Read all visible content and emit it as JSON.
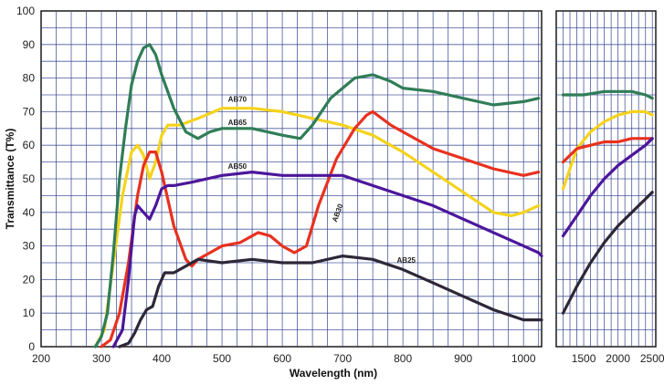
{
  "chart_data": {
    "type": "line",
    "xlabel": "Wavelength (nm)",
    "ylabel": "Transmittance (T%)",
    "ylim": [
      0,
      100
    ],
    "yticks": [
      0,
      10,
      20,
      30,
      40,
      50,
      60,
      70,
      80,
      90,
      100
    ],
    "grid": true,
    "panels": [
      {
        "xlim": [
          200,
          1030
        ],
        "xticks": [
          200,
          300,
          400,
          500,
          600,
          700,
          800,
          900,
          1000
        ],
        "minor_xtick_step": 25
      },
      {
        "xlim": [
          1100,
          2550
        ],
        "xticks": [
          1500,
          2000,
          2500
        ],
        "minor_xtick_step": 100
      }
    ],
    "series": [
      {
        "name": "AB70",
        "color": "#f5d31c",
        "values": [
          [
            290,
            0
          ],
          [
            305,
            5
          ],
          [
            320,
            25
          ],
          [
            335,
            45
          ],
          [
            350,
            58
          ],
          [
            360,
            60
          ],
          [
            370,
            57
          ],
          [
            380,
            50
          ],
          [
            390,
            55
          ],
          [
            400,
            63
          ],
          [
            410,
            66
          ],
          [
            430,
            66
          ],
          [
            460,
            68
          ],
          [
            500,
            71
          ],
          [
            550,
            71
          ],
          [
            600,
            70
          ],
          [
            650,
            68
          ],
          [
            700,
            66
          ],
          [
            750,
            63
          ],
          [
            800,
            58
          ],
          [
            850,
            52
          ],
          [
            900,
            46
          ],
          [
            950,
            40
          ],
          [
            980,
            39
          ],
          [
            1000,
            40
          ],
          [
            1025,
            42
          ]
        ],
        "values_ext": [
          [
            1200,
            47
          ],
          [
            1400,
            59
          ],
          [
            1600,
            64
          ],
          [
            1800,
            67
          ],
          [
            2000,
            69
          ],
          [
            2200,
            70
          ],
          [
            2400,
            70
          ],
          [
            2500,
            69
          ]
        ]
      },
      {
        "name": "AB65",
        "color": "#2f7d56",
        "values": [
          [
            290,
            0
          ],
          [
            300,
            3
          ],
          [
            310,
            10
          ],
          [
            320,
            28
          ],
          [
            330,
            50
          ],
          [
            340,
            65
          ],
          [
            350,
            78
          ],
          [
            360,
            85
          ],
          [
            370,
            89
          ],
          [
            380,
            90
          ],
          [
            390,
            87
          ],
          [
            400,
            81
          ],
          [
            420,
            71
          ],
          [
            440,
            64
          ],
          [
            460,
            62
          ],
          [
            480,
            64
          ],
          [
            500,
            65
          ],
          [
            550,
            65
          ],
          [
            600,
            63
          ],
          [
            630,
            62
          ],
          [
            650,
            66
          ],
          [
            680,
            74
          ],
          [
            720,
            80
          ],
          [
            750,
            81
          ],
          [
            780,
            79
          ],
          [
            800,
            77
          ],
          [
            850,
            76
          ],
          [
            900,
            74
          ],
          [
            950,
            72
          ],
          [
            1000,
            73
          ],
          [
            1025,
            74
          ]
        ],
        "values_ext": [
          [
            1200,
            75
          ],
          [
            1500,
            75
          ],
          [
            1800,
            76
          ],
          [
            2000,
            76
          ],
          [
            2200,
            76
          ],
          [
            2400,
            75
          ],
          [
            2500,
            74
          ]
        ]
      },
      {
        "name": "AB30",
        "color": "#e8311f",
        "values": [
          [
            300,
            0
          ],
          [
            315,
            2
          ],
          [
            330,
            10
          ],
          [
            345,
            25
          ],
          [
            360,
            45
          ],
          [
            370,
            54
          ],
          [
            380,
            58
          ],
          [
            390,
            58
          ],
          [
            400,
            52
          ],
          [
            420,
            36
          ],
          [
            440,
            26
          ],
          [
            450,
            24
          ],
          [
            460,
            26
          ],
          [
            480,
            28
          ],
          [
            500,
            30
          ],
          [
            530,
            31
          ],
          [
            560,
            34
          ],
          [
            580,
            33
          ],
          [
            600,
            30
          ],
          [
            620,
            28
          ],
          [
            640,
            30
          ],
          [
            660,
            42
          ],
          [
            690,
            56
          ],
          [
            720,
            65
          ],
          [
            740,
            69
          ],
          [
            750,
            70
          ],
          [
            780,
            66
          ],
          [
            800,
            64
          ],
          [
            850,
            59
          ],
          [
            900,
            56
          ],
          [
            950,
            53
          ],
          [
            1000,
            51
          ],
          [
            1025,
            52
          ]
        ],
        "values_ext": [
          [
            1200,
            55
          ],
          [
            1400,
            59
          ],
          [
            1600,
            60
          ],
          [
            1800,
            61
          ],
          [
            2000,
            61
          ],
          [
            2200,
            62
          ],
          [
            2400,
            62
          ],
          [
            2500,
            62
          ]
        ]
      },
      {
        "name": "AB50",
        "color": "#4c169b",
        "values": [
          [
            320,
            0
          ],
          [
            335,
            5
          ],
          [
            345,
            20
          ],
          [
            355,
            39
          ],
          [
            360,
            42
          ],
          [
            370,
            40
          ],
          [
            380,
            38
          ],
          [
            390,
            42
          ],
          [
            400,
            47
          ],
          [
            410,
            48
          ],
          [
            420,
            48
          ],
          [
            450,
            49
          ],
          [
            500,
            51
          ],
          [
            550,
            52
          ],
          [
            600,
            51
          ],
          [
            650,
            51
          ],
          [
            700,
            51
          ],
          [
            750,
            48
          ],
          [
            800,
            45
          ],
          [
            850,
            42
          ],
          [
            900,
            38
          ],
          [
            950,
            34
          ],
          [
            1000,
            30
          ],
          [
            1025,
            28
          ],
          [
            1030,
            27
          ]
        ],
        "values_ext": [
          [
            1200,
            33
          ],
          [
            1400,
            39
          ],
          [
            1600,
            45
          ],
          [
            1800,
            50
          ],
          [
            2000,
            54
          ],
          [
            2200,
            57
          ],
          [
            2400,
            60
          ],
          [
            2500,
            62
          ]
        ]
      },
      {
        "name": "AB25",
        "color": "#2e2738",
        "values": [
          [
            330,
            0
          ],
          [
            345,
            1
          ],
          [
            355,
            4
          ],
          [
            365,
            8
          ],
          [
            375,
            11
          ],
          [
            385,
            12
          ],
          [
            395,
            18
          ],
          [
            405,
            22
          ],
          [
            420,
            22
          ],
          [
            440,
            24
          ],
          [
            460,
            26
          ],
          [
            500,
            25
          ],
          [
            550,
            26
          ],
          [
            600,
            25
          ],
          [
            650,
            25
          ],
          [
            700,
            27
          ],
          [
            750,
            26
          ],
          [
            800,
            23
          ],
          [
            850,
            19
          ],
          [
            900,
            15
          ],
          [
            950,
            11
          ],
          [
            1000,
            8
          ],
          [
            1030,
            8
          ]
        ],
        "values_ext": [
          [
            1200,
            10
          ],
          [
            1400,
            18
          ],
          [
            1600,
            25
          ],
          [
            1800,
            31
          ],
          [
            2000,
            36
          ],
          [
            2200,
            40
          ],
          [
            2400,
            44
          ],
          [
            2500,
            46
          ]
        ]
      }
    ],
    "labels": [
      {
        "text": "AB70",
        "x": 510,
        "y": 73
      },
      {
        "text": "AB65",
        "x": 510,
        "y": 66
      },
      {
        "text": "AB50",
        "x": 510,
        "y": 53
      },
      {
        "text": "AB30",
        "x": 690,
        "y": 37,
        "rotate": -70
      },
      {
        "text": "AB25",
        "x": 790,
        "y": 25
      }
    ]
  }
}
